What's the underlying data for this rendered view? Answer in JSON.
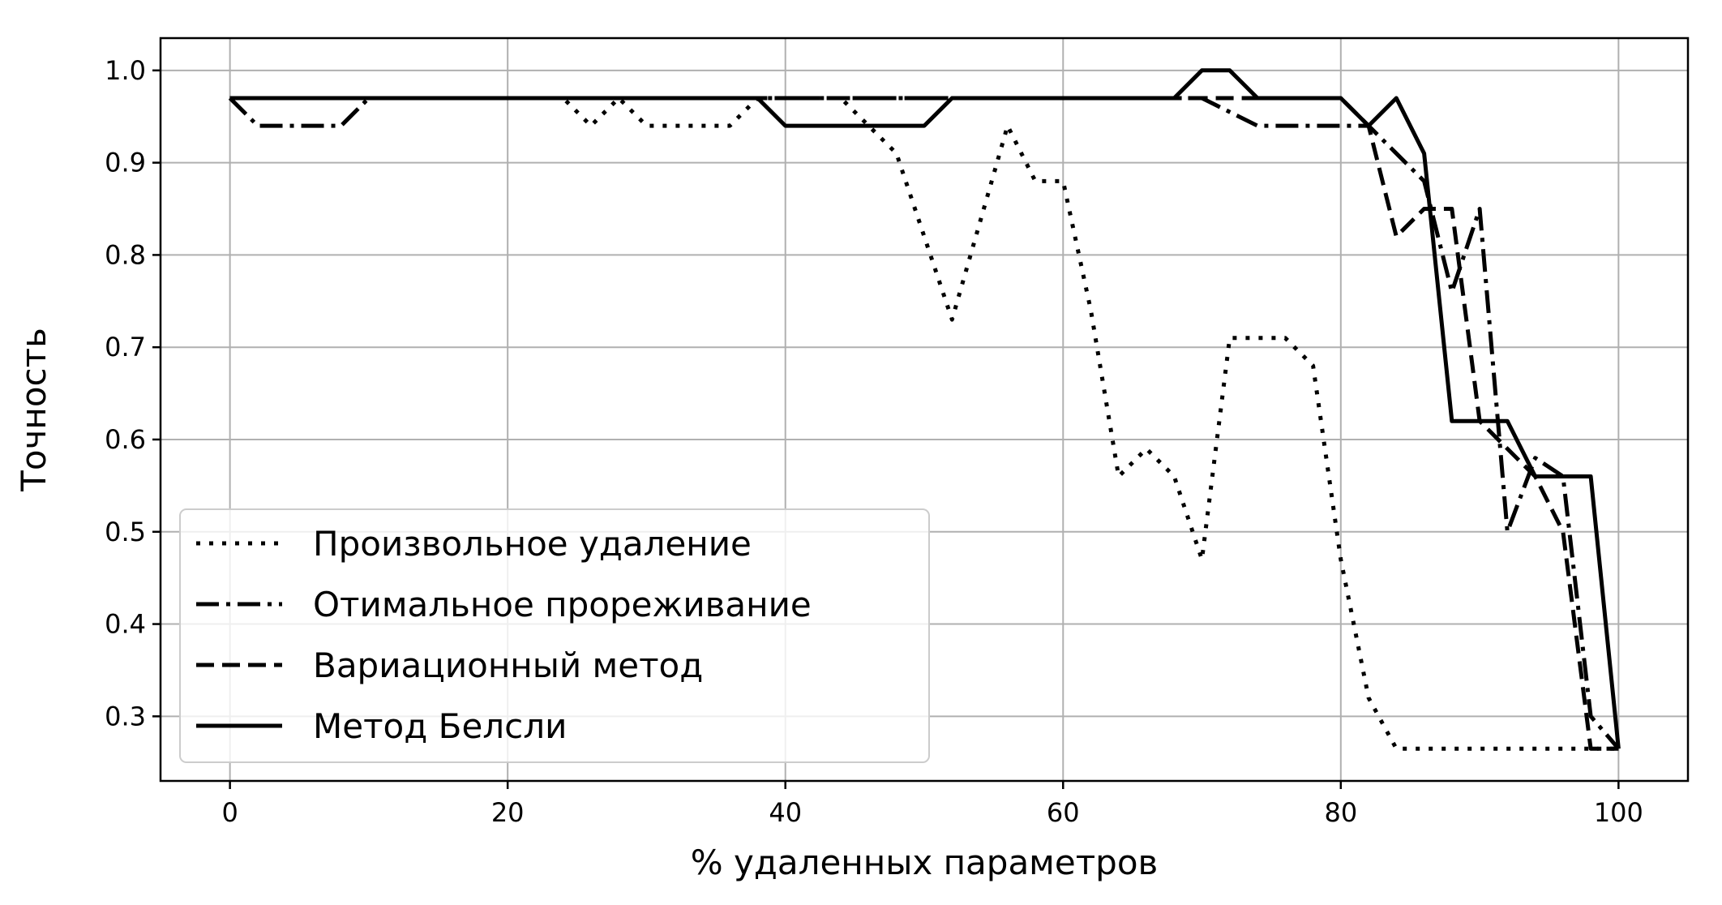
{
  "chart_data": {
    "type": "line",
    "title": "",
    "xlabel": "% удаленных параметров",
    "ylabel": "Точность",
    "xlim": [
      -5,
      105
    ],
    "ylim": [
      0.23,
      1.035
    ],
    "xticks": [
      0,
      20,
      40,
      60,
      80,
      100
    ],
    "xtick_labels": [
      "0",
      "20",
      "40",
      "60",
      "80",
      "100"
    ],
    "yticks": [
      0.3,
      0.4,
      0.5,
      0.6,
      0.7,
      0.8,
      0.9,
      1.0
    ],
    "ytick_labels": [
      "0.3",
      "0.4",
      "0.5",
      "0.6",
      "0.7",
      "0.8",
      "0.9",
      "1.0"
    ],
    "grid": true,
    "legend_position": "lower-left",
    "series": [
      {
        "name": "Произвольное удаление",
        "style": "dotted",
        "x": [
          0,
          10,
          24,
          26,
          28,
          30,
          36,
          38,
          44,
          48,
          52,
          56,
          58,
          60,
          62,
          64,
          66,
          68,
          70,
          72,
          74,
          76,
          78,
          80,
          82,
          84,
          100
        ],
        "y": [
          0.97,
          0.97,
          0.97,
          0.94,
          0.97,
          0.94,
          0.94,
          0.97,
          0.97,
          0.91,
          0.73,
          0.94,
          0.88,
          0.88,
          0.74,
          0.56,
          0.59,
          0.56,
          0.47,
          0.71,
          0.71,
          0.71,
          0.68,
          0.47,
          0.32,
          0.265,
          0.265
        ]
      },
      {
        "name": "Отимальное прореживание",
        "style": "dashdot",
        "x": [
          0,
          2,
          8,
          10,
          70,
          74,
          80,
          82,
          84,
          86,
          88,
          90,
          92,
          94,
          96,
          98,
          100
        ],
        "y": [
          0.97,
          0.94,
          0.94,
          0.97,
          0.97,
          0.94,
          0.94,
          0.94,
          0.91,
          0.88,
          0.76,
          0.85,
          0.5,
          0.58,
          0.56,
          0.3,
          0.265
        ]
      },
      {
        "name": "Вариационный метод",
        "style": "dashed",
        "x": [
          0,
          80,
          82,
          84,
          86,
          88,
          90,
          92,
          94,
          96,
          98,
          100
        ],
        "y": [
          0.97,
          0.97,
          0.94,
          0.82,
          0.85,
          0.85,
          0.62,
          0.59,
          0.56,
          0.5,
          0.265,
          0.265
        ]
      },
      {
        "name": "Метод Белсли",
        "style": "solid",
        "x": [
          0,
          38,
          40,
          50,
          52,
          68,
          70,
          72,
          74,
          80,
          82,
          84,
          86,
          88,
          92,
          94,
          98,
          100
        ],
        "y": [
          0.97,
          0.97,
          0.94,
          0.94,
          0.97,
          0.97,
          1.0,
          1.0,
          0.97,
          0.97,
          0.94,
          0.97,
          0.91,
          0.62,
          0.62,
          0.56,
          0.56,
          0.265
        ]
      }
    ]
  }
}
